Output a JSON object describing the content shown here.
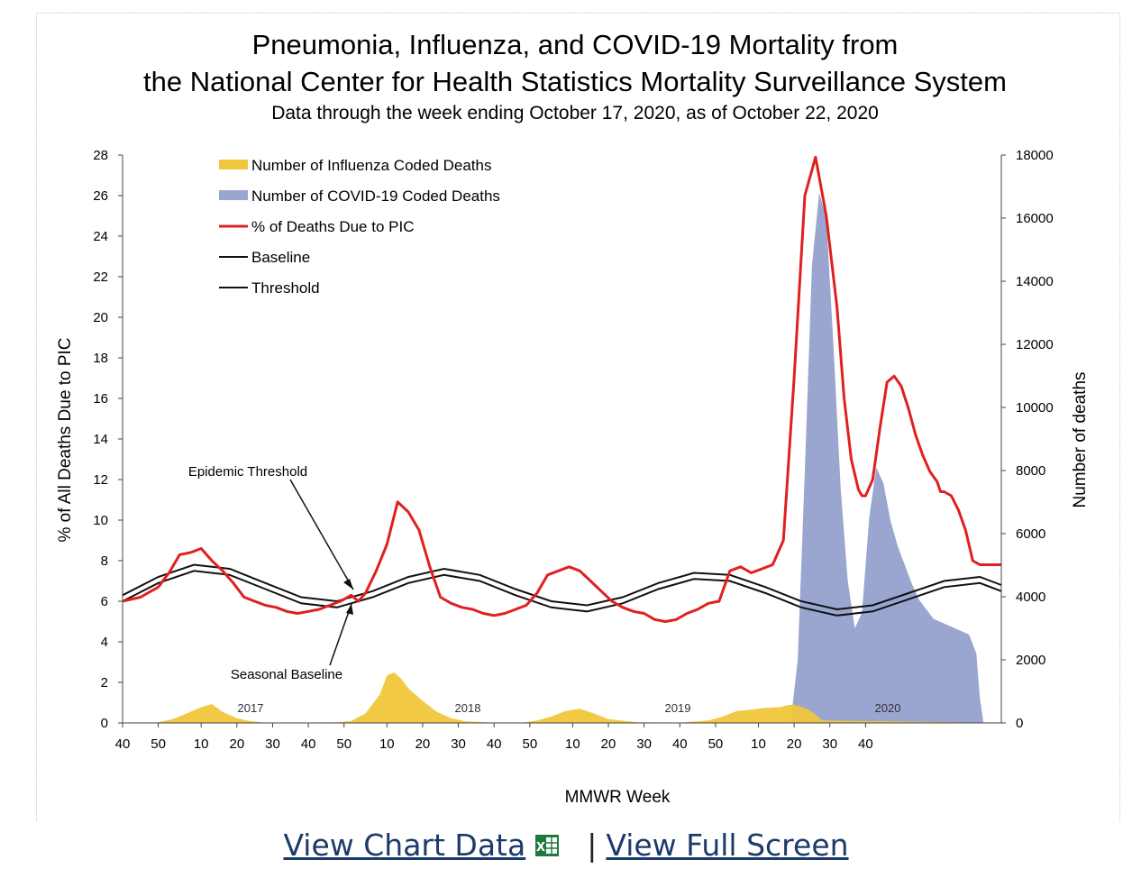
{
  "chart_data": {
    "type": "line",
    "title": "Pneumonia, Influenza, and COVID-19 Mortality from",
    "title_line2": "the National Center for Health Statistics Mortality Surveillance System",
    "subtitle": "Data through the week ending October 17, 2020, as of October 22, 2020",
    "xlabel": "MMWR Week",
    "ylabel_left": "% of All Deaths Due to PIC",
    "ylabel_right": "Number of deaths",
    "ylim_left": [
      0,
      28
    ],
    "ylim_right": [
      0,
      18000
    ],
    "yticks_left": [
      "0",
      "2",
      "4",
      "6",
      "8",
      "10",
      "12",
      "14",
      "16",
      "18",
      "20",
      "22",
      "24",
      "26",
      "28"
    ],
    "yticks_right": [
      "0",
      "2000",
      "4000",
      "6000",
      "8000",
      "10000",
      "12000",
      "14000",
      "16000",
      "18000"
    ],
    "xticks": [
      "40",
      "50",
      "10",
      "20",
      "30",
      "40",
      "50",
      "10",
      "20",
      "30",
      "40",
      "50",
      "10",
      "20",
      "30",
      "40",
      "50",
      "10",
      "20",
      "30",
      "40"
    ],
    "season_labels": [
      "2017",
      "2018",
      "2019",
      "2020"
    ],
    "week_range": [
      "2016 week 40",
      "2020 week 42"
    ],
    "grid": false,
    "legend_position": "top-left",
    "legend": [
      {
        "label": "Number of Influenza Coded Deaths",
        "color": "#f0c63a",
        "kind": "area"
      },
      {
        "label": "Number of COVID-19 Coded Deaths",
        "color": "#9aa6cf",
        "kind": "area"
      },
      {
        "label": "% of Deaths Due to PIC",
        "color": "#e02020",
        "kind": "line"
      },
      {
        "label": "Baseline",
        "color": "#111111",
        "kind": "line"
      },
      {
        "label": "Threshold",
        "color": "#111111",
        "kind": "line"
      }
    ],
    "annotations": [
      "Epidemic Threshold",
      "Seasonal Baseline"
    ],
    "series": [
      {
        "name": "% of Deaths Due to PIC",
        "axis": "left",
        "x": [
          0,
          5,
          10,
          13,
          16,
          19,
          22,
          25,
          28,
          31,
          34,
          37,
          40,
          43,
          46,
          49,
          52,
          55,
          58,
          61,
          64,
          66,
          68,
          71,
          74,
          77,
          80,
          83,
          86,
          89,
          92,
          95,
          98,
          101,
          104,
          107,
          110,
          113,
          116,
          119,
          122,
          125,
          128,
          131,
          134,
          137,
          140,
          143,
          146,
          149,
          152,
          155,
          158,
          161,
          164,
          167,
          170,
          173,
          176,
          179,
          182,
          185,
          188,
          191,
          194,
          197,
          200,
          202,
          204,
          206,
          207,
          208,
          210,
          212,
          214,
          216,
          218,
          220,
          222,
          224,
          226,
          228,
          229,
          230,
          232,
          234,
          236,
          238,
          240,
          242,
          243,
          244,
          245,
          246
        ],
        "y": [
          6.0,
          6.2,
          6.7,
          7.4,
          8.3,
          8.4,
          8.6,
          8.0,
          7.5,
          6.9,
          6.2,
          6.0,
          5.8,
          5.7,
          5.5,
          5.4,
          5.5,
          5.6,
          5.8,
          6.0,
          6.3,
          6.0,
          6.4,
          7.5,
          8.8,
          10.9,
          10.4,
          9.5,
          7.7,
          6.2,
          5.9,
          5.7,
          5.6,
          5.4,
          5.3,
          5.4,
          5.6,
          5.8,
          6.4,
          7.3,
          7.5,
          7.7,
          7.5,
          7.0,
          6.5,
          6.0,
          5.7,
          5.5,
          5.4,
          5.1,
          5.0,
          5.1,
          5.4,
          5.6,
          5.9,
          6.0,
          7.5,
          7.7,
          7.4,
          7.6,
          7.8,
          9.0,
          17.0,
          26.0,
          27.9,
          25.0,
          20.5,
          16.0,
          13.0,
          11.5,
          11.2,
          11.2,
          12.0,
          14.5,
          16.8,
          17.1,
          16.6,
          15.5,
          14.2,
          13.2,
          12.4,
          11.9,
          11.4,
          11.4,
          11.2,
          10.5,
          9.5,
          8.0,
          7.8,
          7.8,
          7.8,
          7.8,
          7.8,
          7.8
        ]
      },
      {
        "name": "Baseline",
        "axis": "left",
        "x": [
          0,
          10,
          20,
          30,
          40,
          50,
          60,
          70,
          80,
          90,
          100,
          110,
          120,
          130,
          140,
          150,
          160,
          170,
          180,
          190,
          200,
          210,
          220,
          230,
          240,
          246
        ],
        "y": [
          6.0,
          6.9,
          7.5,
          7.3,
          6.6,
          5.9,
          5.7,
          6.2,
          6.9,
          7.3,
          7.0,
          6.3,
          5.7,
          5.5,
          5.9,
          6.6,
          7.1,
          7.0,
          6.4,
          5.7,
          5.3,
          5.5,
          6.1,
          6.7,
          6.9,
          6.5
        ]
      },
      {
        "name": "Threshold",
        "axis": "left",
        "x": [
          0,
          10,
          20,
          30,
          40,
          50,
          60,
          70,
          80,
          90,
          100,
          110,
          120,
          130,
          140,
          150,
          160,
          170,
          180,
          190,
          200,
          210,
          220,
          230,
          240,
          246
        ],
        "y": [
          6.3,
          7.2,
          7.8,
          7.6,
          6.9,
          6.2,
          6.0,
          6.5,
          7.2,
          7.6,
          7.3,
          6.6,
          6.0,
          5.8,
          6.2,
          6.9,
          7.4,
          7.3,
          6.7,
          6.0,
          5.6,
          5.8,
          6.4,
          7.0,
          7.2,
          6.8
        ]
      },
      {
        "name": "Number of Influenza Coded Deaths",
        "axis": "right",
        "x": [
          0,
          10,
          14,
          18,
          22,
          25,
          28,
          32,
          36,
          40,
          50,
          60,
          64,
          68,
          72,
          74,
          76,
          78,
          80,
          84,
          88,
          92,
          96,
          104,
          112,
          116,
          120,
          124,
          128,
          132,
          136,
          144,
          156,
          164,
          168,
          172,
          176,
          180,
          184,
          186,
          188,
          190,
          192,
          194,
          196,
          246
        ],
        "y": [
          0,
          20,
          120,
          300,
          500,
          600,
          350,
          150,
          50,
          10,
          10,
          20,
          60,
          300,
          900,
          1500,
          1600,
          1400,
          1100,
          700,
          350,
          150,
          50,
          10,
          10,
          80,
          200,
          380,
          450,
          300,
          120,
          20,
          10,
          80,
          200,
          380,
          420,
          480,
          500,
          560,
          580,
          520,
          420,
          260,
          80,
          0
        ]
      },
      {
        "name": "Number of COVID-19 Coded Deaths",
        "axis": "right",
        "x": [
          187,
          189,
          191,
          193,
          195,
          197,
          199,
          201,
          203,
          205,
          207,
          209,
          211,
          213,
          215,
          217,
          219,
          221,
          223,
          225,
          227,
          229,
          231,
          233,
          235,
          237,
          239,
          240,
          241
        ],
        "y": [
          0,
          2000,
          8000,
          14500,
          16800,
          16000,
          12000,
          7500,
          4500,
          3000,
          3500,
          6500,
          8100,
          7600,
          6400,
          5600,
          5000,
          4400,
          3900,
          3600,
          3300,
          3200,
          3100,
          3000,
          2900,
          2800,
          2200,
          800,
          0
        ]
      }
    ]
  },
  "footer": {
    "view_chart_data": "View Chart Data",
    "separator": "|",
    "view_full_screen": "View Full Screen",
    "excel_icon": "excel-icon"
  }
}
